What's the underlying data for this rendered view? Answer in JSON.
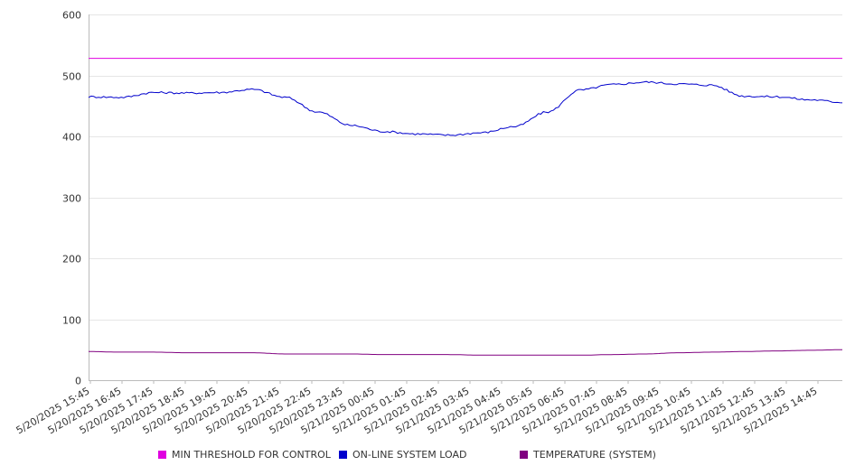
{
  "chart_data": {
    "type": "line",
    "title": "",
    "xlabel": "",
    "ylabel": "",
    "ylim": [
      0,
      600
    ],
    "yticks": [
      "0",
      "100",
      "200",
      "300",
      "400",
      "500",
      "600"
    ],
    "yticks_values": [
      0,
      100,
      200,
      300,
      400,
      500,
      600
    ],
    "grid": true,
    "legend_position": "bottom",
    "x_labels": [
      "5/20/2025 15:45",
      "5/20/2025 16:45",
      "5/20/2025 17:45",
      "5/20/2025 18:45",
      "5/20/2025 19:45",
      "5/20/2025 20:45",
      "5/20/2025 21:45",
      "5/20/2025 22:45",
      "5/20/2025 23:45",
      "5/21/2025 00:45",
      "5/21/2025 01:45",
      "5/21/2025 02:45",
      "5/21/2025 03:45",
      "5/21/2025 04:45",
      "5/21/2025 05:45",
      "5/21/2025 06:45",
      "5/21/2025 07:45",
      "5/21/2025 08:45",
      "5/21/2025 09:45",
      "5/21/2025 10:45",
      "5/21/2025 11:45",
      "5/21/2025 12:45",
      "5/21/2025 13:45",
      "5/21/2025 14:45"
    ],
    "series": [
      {
        "name": "MIN THRESHOLD FOR CONTROL",
        "color": "#e000e0",
        "values": [
          528,
          528,
          528,
          528,
          528,
          528,
          528,
          528,
          528,
          528,
          528,
          528,
          528,
          528,
          528,
          528,
          528,
          528,
          528,
          528,
          528,
          528,
          528,
          528
        ]
      },
      {
        "name": "ON-LINE SYSTEM LOAD",
        "color": "#0000cc",
        "values": [
          465,
          464,
          472,
          471,
          472,
          477,
          464,
          440,
          418,
          408,
          404,
          402,
          406,
          416,
          440,
          476,
          485,
          489,
          486,
          484,
          466,
          465,
          460,
          456
        ]
      },
      {
        "name": "TEMPERATURE (SYSTEM)",
        "color": "#800080",
        "values": [
          47,
          46,
          46,
          45,
          45,
          45,
          43,
          43,
          43,
          42,
          42,
          42,
          41,
          41,
          41,
          41,
          42,
          43,
          45,
          46,
          47,
          48,
          49,
          50
        ]
      }
    ]
  }
}
